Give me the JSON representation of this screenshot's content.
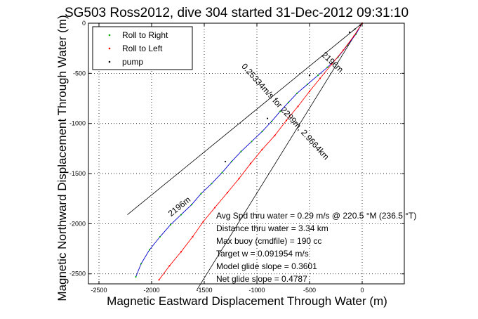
{
  "chart_data": {
    "type": "line",
    "title": "SG503 Ross2012, dive 304 started 31-Dec-2012 09:31:10",
    "xlabel": "Magnetic Eastward Displacement Through Water (m)",
    "ylabel": "Magnetic Northward Displacement Through Water (m)",
    "xlim": [
      -2600,
      400
    ],
    "ylim": [
      -2600,
      0
    ],
    "xticks": [
      -2500,
      -2000,
      -1500,
      -1000,
      -500,
      0
    ],
    "yticks": [
      -2500,
      -2000,
      -1500,
      -1000,
      -500,
      0
    ],
    "grid": true,
    "legend_position": "top-left",
    "series": [
      {
        "name": "Roll to Right",
        "color": "#00aa00",
        "style": "dots",
        "x": [
          0,
          -60,
          -140,
          -230,
          -330,
          -420,
          -520,
          -620,
          -700,
          -780,
          -860,
          -950,
          -1050,
          -1150,
          -1240,
          -1330,
          -1430,
          -1530,
          -1620,
          -1720,
          -1820,
          -1920,
          -2020,
          -2100,
          -2150
        ],
        "y": [
          0,
          -110,
          -220,
          -340,
          -440,
          -520,
          -610,
          -700,
          -790,
          -880,
          -980,
          -1080,
          -1180,
          -1280,
          -1380,
          -1490,
          -1600,
          -1700,
          -1810,
          -1910,
          -2010,
          -2130,
          -2260,
          -2400,
          -2530
        ]
      },
      {
        "name": "Roll to Left",
        "color": "#ff0000",
        "style": "dots",
        "x": [
          0,
          -80,
          -180,
          -290,
          -400,
          -500,
          -610,
          -720,
          -830,
          -950,
          -1060,
          -1170,
          -1280,
          -1400,
          -1510,
          -1610,
          -1720,
          -1830,
          -1930
        ],
        "y": [
          0,
          -130,
          -270,
          -410,
          -550,
          -680,
          -830,
          -970,
          -1120,
          -1260,
          -1400,
          -1550,
          -1690,
          -1840,
          -1980,
          -2130,
          -2280,
          -2420,
          -2560
        ]
      },
      {
        "name": "pump",
        "color": "#000000",
        "style": "dots",
        "x": [
          -20,
          -70,
          -120,
          -500,
          -900,
          -1300
        ],
        "y": [
          -20,
          -60,
          -90,
          -520,
          -950,
          -1380
        ]
      }
    ],
    "reference_lines": [
      {
        "x": [
          0,
          -2230
        ],
        "y": [
          0,
          -1910
        ]
      },
      {
        "x": [
          0,
          -1570
        ],
        "y": [
          0,
          -2660
        ]
      }
    ],
    "annotations": [
      {
        "text": "2196m",
        "x": -300,
        "y": -410,
        "angle": 43
      },
      {
        "text": "0.25334m/s for 2299m, 2.9664km",
        "x": -750,
        "y": -900,
        "angle": 48
      },
      {
        "text": "2196m",
        "x": -1720,
        "y": -1850,
        "angle": -39
      }
    ],
    "stats": [
      "Avg Spd thru water =  0.29 m/s @ 220.5    °M (236.5 °T)",
      "Distance thru water =  3.34 km",
      "Max buoy (cmdfile) = 190 cc",
      "Target w = 0.091954 m/s",
      "Model glide slope = 0.3601",
      "Net glide slope = 0.4787"
    ]
  }
}
